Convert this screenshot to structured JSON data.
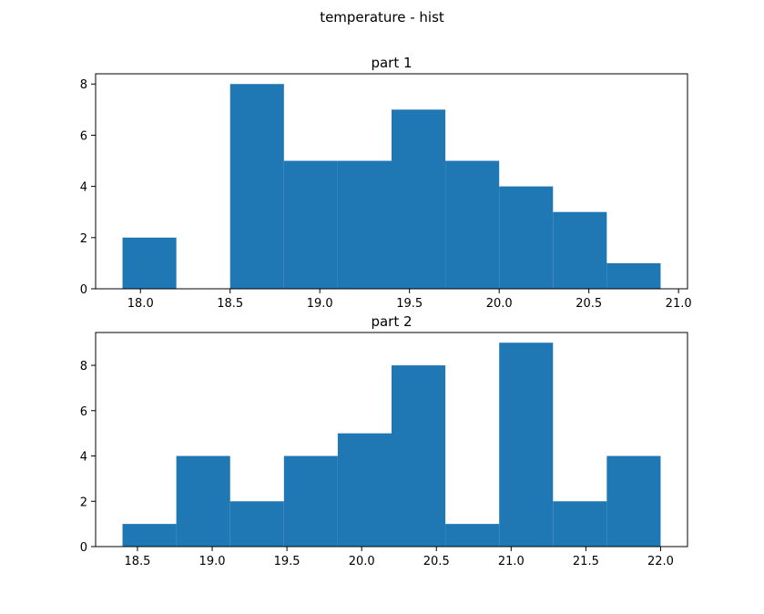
{
  "figure": {
    "suptitle": "temperature - hist",
    "bar_color": "#1f77b4",
    "axes_color": "#000000"
  },
  "chart_data": [
    {
      "type": "bar",
      "title": "part 1",
      "xlabel": "",
      "ylabel": "",
      "bin_edges": [
        17.9,
        18.2,
        18.5,
        18.8,
        19.1,
        19.4,
        19.7,
        20.0,
        20.3,
        20.6,
        20.9
      ],
      "values": [
        2,
        0,
        8,
        5,
        5,
        7,
        5,
        4,
        3,
        1
      ],
      "xlim": [
        17.75,
        21.05
      ],
      "ylim": [
        0,
        8.4
      ],
      "xticks": [
        18.0,
        18.5,
        19.0,
        19.5,
        20.0,
        20.5,
        21.0
      ],
      "xtick_labels": [
        "18.0",
        "18.5",
        "19.0",
        "19.5",
        "20.0",
        "20.5",
        "21.0"
      ],
      "yticks": [
        0,
        2,
        4,
        6,
        8
      ],
      "ytick_labels": [
        "0",
        "2",
        "4",
        "6",
        "8"
      ],
      "grid": false
    },
    {
      "type": "bar",
      "title": "part 2",
      "xlabel": "",
      "ylabel": "",
      "bin_edges": [
        18.4,
        18.76,
        19.12,
        19.48,
        19.84,
        20.2,
        20.56,
        20.92,
        21.28,
        21.64,
        22.0
      ],
      "values": [
        1,
        4,
        2,
        4,
        5,
        8,
        1,
        9,
        2,
        4
      ],
      "xlim": [
        18.22,
        22.18
      ],
      "ylim": [
        0,
        9.45
      ],
      "xticks": [
        18.5,
        19.0,
        19.5,
        20.0,
        20.5,
        21.0,
        21.5,
        22.0
      ],
      "xtick_labels": [
        "18.5",
        "19.0",
        "19.5",
        "20.0",
        "20.5",
        "21.0",
        "21.5",
        "22.0"
      ],
      "yticks": [
        0,
        2,
        4,
        6,
        8
      ],
      "ytick_labels": [
        "0",
        "2",
        "4",
        "6",
        "8"
      ],
      "grid": false
    }
  ]
}
